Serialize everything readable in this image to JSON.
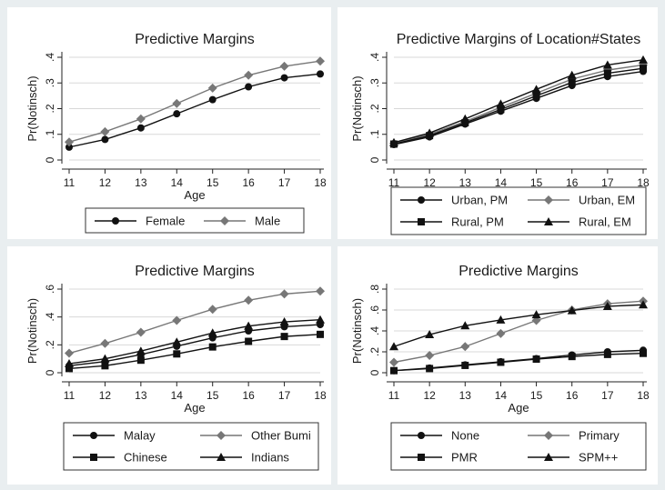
{
  "page": {
    "background": "#e9eef0",
    "panel_background": "#ffffff",
    "line_color": "#111111",
    "grey_series_color": "#777777"
  },
  "chart_data": [
    {
      "type": "line",
      "title": "Predictive Margins",
      "xlabel": "Age",
      "ylabel": "Pr(Notinsch)",
      "x": [
        11,
        12,
        13,
        14,
        15,
        16,
        17,
        18
      ],
      "xticks": [
        "11",
        "12",
        "13",
        "14",
        "15",
        "16",
        "17",
        "18"
      ],
      "ylim": [
        0,
        0.4
      ],
      "yticks": [
        {
          "v": 0,
          "label": "0"
        },
        {
          "v": 0.1,
          "label": ".1"
        },
        {
          "v": 0.2,
          "label": ".2"
        },
        {
          "v": 0.3,
          "label": ".3"
        },
        {
          "v": 0.4,
          "label": ".4"
        }
      ],
      "grid": true,
      "legend": "bottom",
      "series": [
        {
          "name": "Female",
          "marker": "circle",
          "color": "#111111",
          "values": [
            0.05,
            0.08,
            0.125,
            0.18,
            0.235,
            0.285,
            0.32,
            0.335
          ]
        },
        {
          "name": "Male",
          "marker": "diamond",
          "color": "#777777",
          "values": [
            0.07,
            0.11,
            0.16,
            0.22,
            0.28,
            0.33,
            0.365,
            0.385
          ]
        }
      ]
    },
    {
      "type": "line",
      "title": "Predictive Margins of Location#States",
      "xlabel": "Age",
      "ylabel": "Pr(Notinsch)",
      "x": [
        11,
        12,
        13,
        14,
        15,
        16,
        17,
        18
      ],
      "xticks": [
        "11",
        "12",
        "13",
        "14",
        "15",
        "16",
        "17",
        "18"
      ],
      "ylim": [
        0,
        0.4
      ],
      "yticks": [
        {
          "v": 0,
          "label": "0"
        },
        {
          "v": 0.1,
          "label": ".1"
        },
        {
          "v": 0.2,
          "label": ".2"
        },
        {
          "v": 0.3,
          "label": ".3"
        },
        {
          "v": 0.4,
          "label": ".4"
        }
      ],
      "grid": true,
      "legend": "bottom",
      "series": [
        {
          "name": "Urban, PM",
          "marker": "circle",
          "color": "#111111",
          "values": [
            0.06,
            0.09,
            0.14,
            0.19,
            0.24,
            0.29,
            0.325,
            0.345
          ]
        },
        {
          "name": "Urban, EM",
          "marker": "diamond",
          "color": "#777777",
          "values": [
            0.065,
            0.1,
            0.15,
            0.205,
            0.26,
            0.315,
            0.35,
            0.37
          ]
        },
        {
          "name": "Rural, PM",
          "marker": "square",
          "color": "#111111",
          "values": [
            0.062,
            0.095,
            0.145,
            0.197,
            0.25,
            0.302,
            0.338,
            0.357
          ]
        },
        {
          "name": "Rural, EM",
          "marker": "triangle",
          "color": "#111111",
          "values": [
            0.068,
            0.105,
            0.16,
            0.218,
            0.275,
            0.33,
            0.37,
            0.39
          ]
        }
      ]
    },
    {
      "type": "line",
      "title": "Predictive Margins",
      "xlabel": "Age",
      "ylabel": "Pr(Notinsch)",
      "x": [
        11,
        12,
        13,
        14,
        15,
        16,
        17,
        18
      ],
      "xticks": [
        "11",
        "12",
        "13",
        "14",
        "15",
        "16",
        "17",
        "18"
      ],
      "ylim": [
        0,
        0.6
      ],
      "yticks": [
        {
          "v": 0,
          "label": "0"
        },
        {
          "v": 0.2,
          "label": ".2"
        },
        {
          "v": 0.4,
          "label": ".4"
        },
        {
          "v": 0.6,
          "label": ".6"
        }
      ],
      "grid": true,
      "legend": "bottom",
      "series": [
        {
          "name": "Malay",
          "marker": "circle",
          "color": "#111111",
          "values": [
            0.05,
            0.08,
            0.13,
            0.19,
            0.25,
            0.3,
            0.33,
            0.345
          ]
        },
        {
          "name": "Other Bumi",
          "marker": "diamond",
          "color": "#777777",
          "values": [
            0.14,
            0.21,
            0.29,
            0.375,
            0.455,
            0.52,
            0.565,
            0.585
          ]
        },
        {
          "name": "Chinese",
          "marker": "square",
          "color": "#111111",
          "values": [
            0.03,
            0.05,
            0.09,
            0.135,
            0.185,
            0.225,
            0.26,
            0.275
          ]
        },
        {
          "name": "Indians",
          "marker": "triangle",
          "color": "#111111",
          "values": [
            0.065,
            0.1,
            0.155,
            0.22,
            0.285,
            0.335,
            0.365,
            0.38
          ]
        }
      ]
    },
    {
      "type": "line",
      "title": "Predictive Margins",
      "xlabel": "Age",
      "ylabel": "Pr(Notinsch)",
      "x": [
        11,
        12,
        13,
        14,
        15,
        16,
        17,
        18
      ],
      "xticks": [
        "11",
        "12",
        "13",
        "14",
        "15",
        "16",
        "17",
        "18"
      ],
      "ylim": [
        0,
        0.8
      ],
      "yticks": [
        {
          "v": 0,
          "label": "0"
        },
        {
          "v": 0.2,
          "label": ".2"
        },
        {
          "v": 0.4,
          "label": ".4"
        },
        {
          "v": 0.6,
          "label": ".6"
        },
        {
          "v": 0.8,
          "label": ".8"
        }
      ],
      "grid": true,
      "legend": "bottom",
      "series": [
        {
          "name": "None",
          "marker": "circle",
          "color": "#111111",
          "values": [
            0.02,
            0.045,
            0.075,
            0.105,
            0.135,
            0.17,
            0.2,
            0.215
          ]
        },
        {
          "name": "Primary",
          "marker": "diamond",
          "color": "#777777",
          "values": [
            0.1,
            0.165,
            0.25,
            0.375,
            0.5,
            0.6,
            0.66,
            0.685
          ]
        },
        {
          "name": "PMR",
          "marker": "square",
          "color": "#111111",
          "values": [
            0.02,
            0.04,
            0.07,
            0.1,
            0.13,
            0.155,
            0.175,
            0.185
          ]
        },
        {
          "name": "SPM++",
          "marker": "triangle",
          "color": "#111111",
          "values": [
            0.25,
            0.365,
            0.45,
            0.505,
            0.555,
            0.595,
            0.635,
            0.65
          ]
        }
      ]
    }
  ]
}
